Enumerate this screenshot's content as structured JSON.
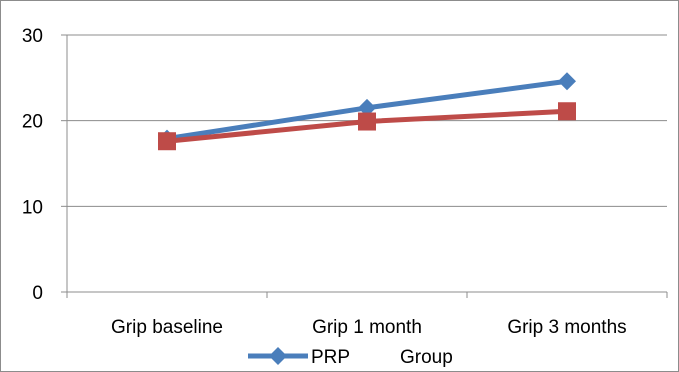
{
  "chart_data": {
    "type": "line",
    "categories": [
      "Grip baseline",
      "Grip 1 month",
      "Grip 3 months"
    ],
    "ylim": [
      0,
      30
    ],
    "yticks": [
      0,
      10,
      20,
      30
    ],
    "grid": "horizontal",
    "legend_position": "bottom",
    "series": [
      {
        "name": "PRP",
        "values": [
          17.9,
          21.5,
          24.6
        ],
        "color": "#4a7ebb",
        "marker": "diamond"
      },
      {
        "name": "Group",
        "values": [
          17.6,
          19.9,
          21.1
        ],
        "color": "#be4b48",
        "marker": "square"
      }
    ]
  }
}
